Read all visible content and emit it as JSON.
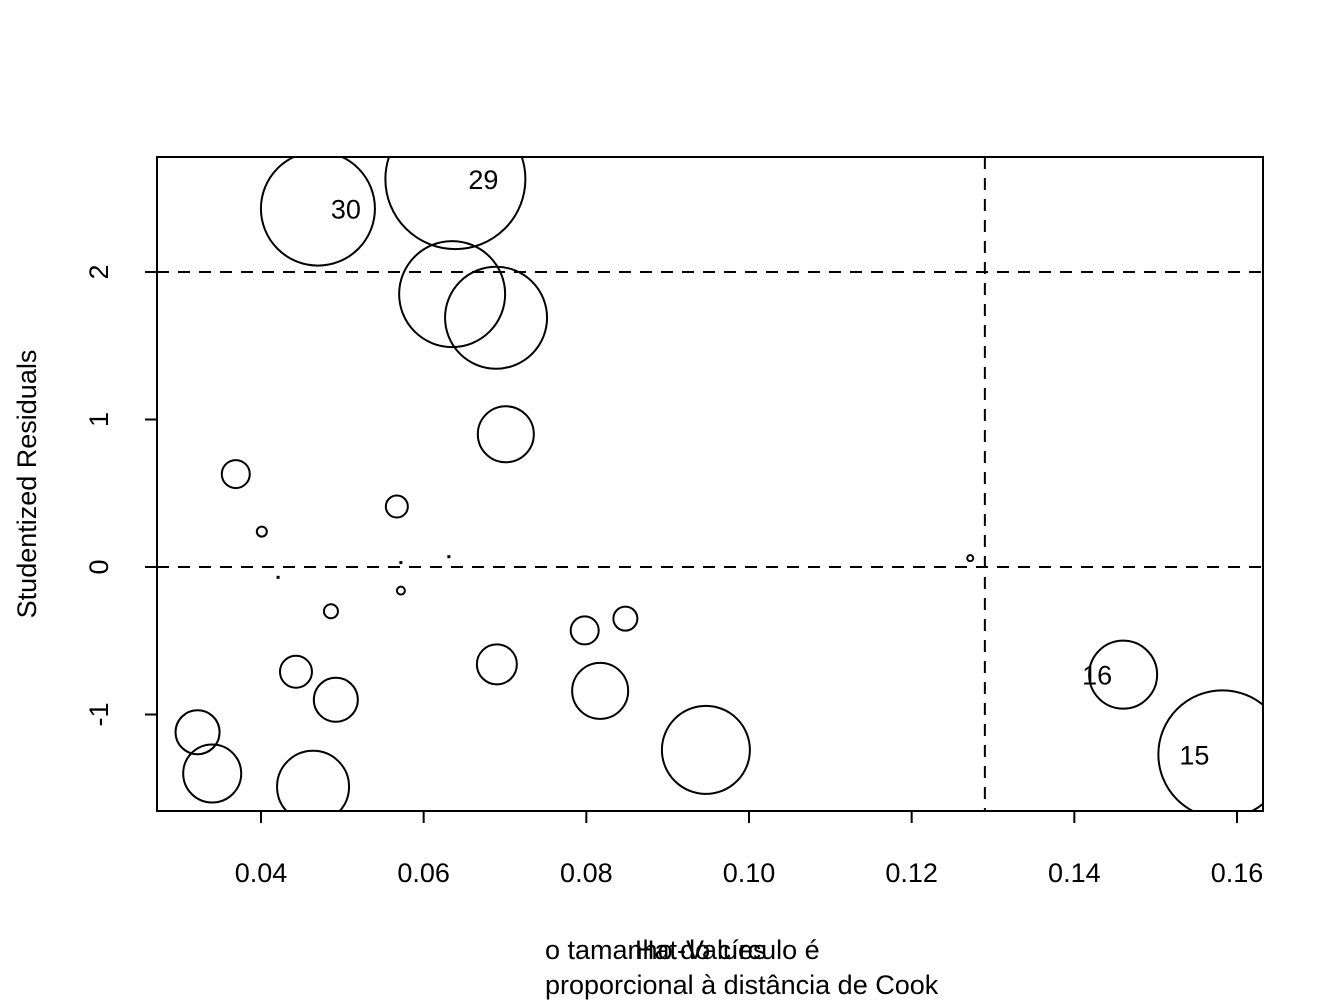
{
  "chart_data": {
    "type": "scatter",
    "subtype": "bubble",
    "title": "",
    "xlabel": "Hat-Values",
    "ylabel": "Studentized Residuals",
    "sub_caption": [
      "o tamanho do círculo é",
      "proporcional à distância de Cook"
    ],
    "xlim": [
      0.028,
      0.163
    ],
    "ylim": [
      -1.66,
      2.78
    ],
    "x_ticks": [
      0.04,
      0.06,
      0.08,
      0.1,
      0.12,
      0.14,
      0.16
    ],
    "x_tick_labels": [
      "0.04",
      "0.06",
      "0.08",
      "0.10",
      "0.12",
      "0.14",
      "0.16"
    ],
    "y_ticks": [
      -1,
      0,
      1,
      2
    ],
    "y_tick_labels": [
      "-1",
      "0",
      "1",
      "2"
    ],
    "reference_lines": {
      "horizontal": [
        0,
        2
      ],
      "vertical": [
        0.129
      ],
      "style": "dashed"
    },
    "grid": false,
    "legend": null,
    "points": [
      {
        "x": 0.047,
        "y": 2.43,
        "size": 57,
        "label": "30"
      },
      {
        "x": 0.0639,
        "y": 2.63,
        "size": 70,
        "label": "29"
      },
      {
        "x": 0.0635,
        "y": 1.85,
        "size": 53,
        "label": ""
      },
      {
        "x": 0.0689,
        "y": 1.69,
        "size": 51,
        "label": ""
      },
      {
        "x": 0.0701,
        "y": 0.9,
        "size": 28,
        "label": ""
      },
      {
        "x": 0.0369,
        "y": 0.63,
        "size": 14,
        "label": ""
      },
      {
        "x": 0.0567,
        "y": 0.41,
        "size": 11,
        "label": ""
      },
      {
        "x": 0.0401,
        "y": 0.24,
        "size": 5,
        "label": ""
      },
      {
        "x": 0.0421,
        "y": -0.07,
        "size": 2,
        "label": ""
      },
      {
        "x": 0.0572,
        "y": 0.03,
        "size": 1,
        "label": ""
      },
      {
        "x": 0.0631,
        "y": 0.07,
        "size": 2,
        "label": ""
      },
      {
        "x": 0.1272,
        "y": 0.06,
        "size": 3,
        "label": ""
      },
      {
        "x": 0.0486,
        "y": -0.3,
        "size": 7,
        "label": ""
      },
      {
        "x": 0.0572,
        "y": -0.16,
        "size": 4,
        "label": ""
      },
      {
        "x": 0.0798,
        "y": -0.43,
        "size": 14,
        "label": ""
      },
      {
        "x": 0.0848,
        "y": -0.35,
        "size": 12,
        "label": ""
      },
      {
        "x": 0.069,
        "y": -0.66,
        "size": 20,
        "label": ""
      },
      {
        "x": 0.0817,
        "y": -0.84,
        "size": 28,
        "label": ""
      },
      {
        "x": 0.0443,
        "y": -0.71,
        "size": 16,
        "label": ""
      },
      {
        "x": 0.0492,
        "y": -0.9,
        "size": 22,
        "label": ""
      },
      {
        "x": 0.0322,
        "y": -1.12,
        "size": 22,
        "label": ""
      },
      {
        "x": 0.034,
        "y": -1.4,
        "size": 29,
        "label": ""
      },
      {
        "x": 0.0464,
        "y": -1.49,
        "size": 36,
        "label": ""
      },
      {
        "x": 0.0947,
        "y": -1.24,
        "size": 44,
        "label": ""
      },
      {
        "x": 0.146,
        "y": -0.73,
        "size": 34,
        "label": "16"
      },
      {
        "x": 0.1582,
        "y": -1.27,
        "size": 64,
        "label": "15"
      }
    ],
    "size_meaning": "Cook's distance (circle radius in px)"
  },
  "labels": {
    "ylabel": "Studentized Residuals",
    "xlabel": "Hat-Values",
    "caption_line1": "o tamanho do círculo é",
    "caption_line2": "proporcional à distância de Cook"
  }
}
